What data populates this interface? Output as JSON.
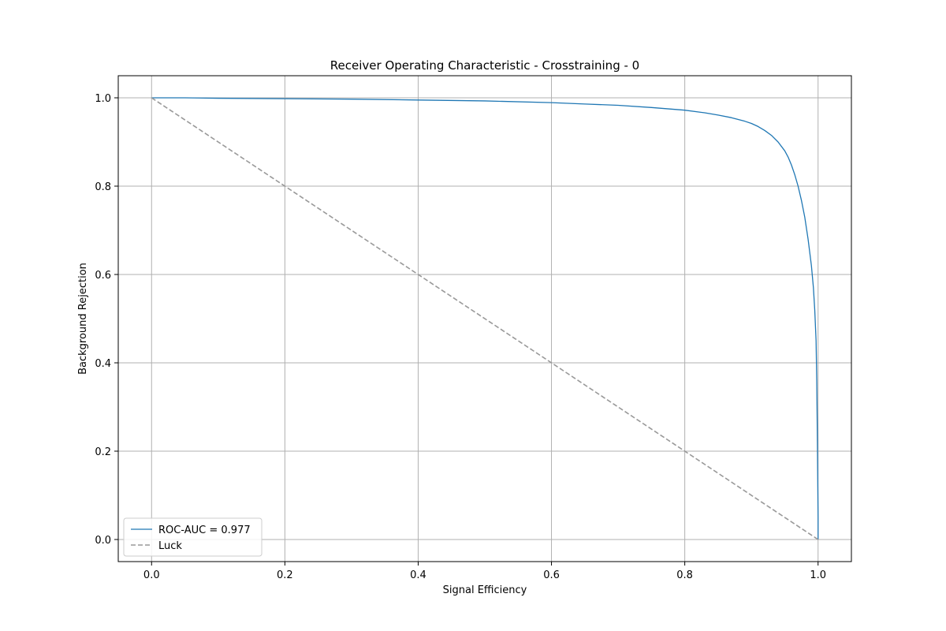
{
  "chart_data": {
    "type": "line",
    "title": "Receiver Operating Characteristic - Crosstraining - 0",
    "xlabel": "Signal Efficiency",
    "ylabel": "Background Rejection",
    "xlim": [
      -0.05,
      1.05
    ],
    "ylim": [
      -0.05,
      1.05
    ],
    "x_ticks": [
      0.0,
      0.2,
      0.4,
      0.6,
      0.8,
      1.0
    ],
    "y_ticks": [
      0.0,
      0.2,
      0.4,
      0.6,
      0.8,
      1.0
    ],
    "x_tick_labels": [
      "0.0",
      "0.2",
      "0.4",
      "0.6",
      "0.8",
      "1.0"
    ],
    "y_tick_labels": [
      "0.0",
      "0.2",
      "0.4",
      "0.6",
      "0.8",
      "1.0"
    ],
    "grid": true,
    "legend_position": "lower-left",
    "series": [
      {
        "name": "ROC-AUC = 0.977",
        "color": "#1f77b4",
        "style": "solid",
        "x": [
          0.0,
          0.05,
          0.1,
          0.2,
          0.3,
          0.4,
          0.5,
          0.6,
          0.65,
          0.7,
          0.75,
          0.8,
          0.83,
          0.85,
          0.87,
          0.89,
          0.9,
          0.91,
          0.92,
          0.93,
          0.94,
          0.95,
          0.955,
          0.96,
          0.965,
          0.97,
          0.975,
          0.98,
          0.985,
          0.99,
          0.993,
          0.995,
          0.997,
          0.998,
          0.999,
          1.0,
          1.0
        ],
        "y": [
          1.0,
          1.0,
          0.999,
          0.998,
          0.997,
          0.995,
          0.993,
          0.989,
          0.986,
          0.983,
          0.978,
          0.972,
          0.966,
          0.961,
          0.955,
          0.947,
          0.942,
          0.935,
          0.926,
          0.915,
          0.9,
          0.88,
          0.866,
          0.848,
          0.826,
          0.8,
          0.768,
          0.73,
          0.68,
          0.62,
          0.57,
          0.52,
          0.45,
          0.36,
          0.22,
          0.05,
          0.0
        ]
      },
      {
        "name": "Luck",
        "color": "#999999",
        "style": "dashed",
        "x": [
          0.0,
          1.0
        ],
        "y": [
          1.0,
          0.0
        ]
      }
    ]
  }
}
